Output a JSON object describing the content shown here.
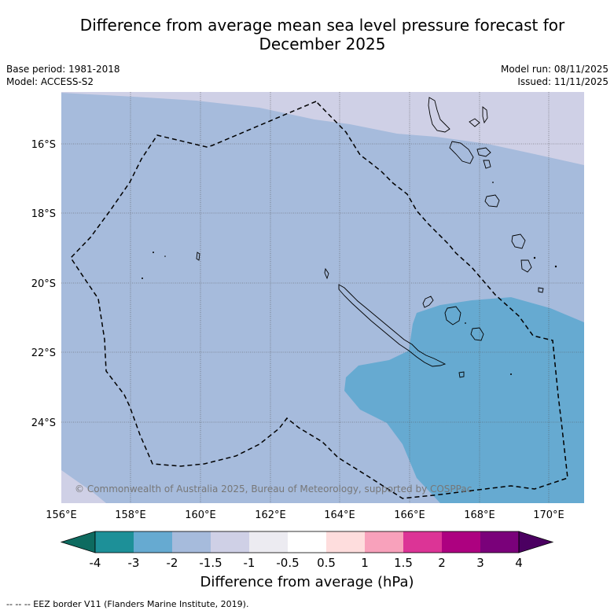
{
  "title_line1": "Difference from average mean sea level pressure forecast for",
  "title_line2": "December 2025",
  "base_period": "Base period: 1981-2018",
  "model": "Model: ACCESS-S2",
  "model_run": "Model run: 08/11/2025",
  "issued": "Issued: 11/11/2025",
  "copyright": "© Commonwealth of Australia 2025, Bureau of Meteorology, supported by COSPPac",
  "map": {
    "lat_labels": [
      "16°S",
      "18°S",
      "20°S",
      "22°S",
      "24°S"
    ],
    "lon_labels": [
      "156°E",
      "158°E",
      "160°E",
      "162°E",
      "164°E",
      "166°E",
      "168°E",
      "170°E"
    ]
  },
  "colorbar": {
    "title": "Difference from average (hPa)",
    "tick_labels": [
      "-4",
      "-3",
      "-2",
      "-1.5",
      "-1",
      "-0.5",
      "0.5",
      "1",
      "1.5",
      "2",
      "3",
      "4"
    ],
    "colors": [
      "#0e6b60",
      "#1d9098",
      "#66aad1",
      "#a6bbdc",
      "#cfd0e6",
      "#ecebf1",
      "#ffffff",
      "#fedddd",
      "#f8a1bb",
      "#dc3496",
      "#ad0180",
      "#7a017a",
      "#4b0061"
    ]
  },
  "footer": "--  --  -- EEZ border V11 (Flanders Marine Institute, 2019)."
}
